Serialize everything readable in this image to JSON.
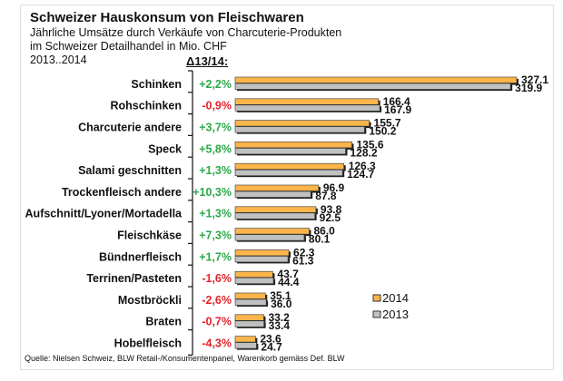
{
  "header": {
    "title": "Schweizer Hauskonsum von Fleischwaren",
    "subtitle_line1": "Jährliche Umsätze durch Verkäufe von Charcuterie-Produkten",
    "subtitle_line2": "im Schweizer Detailhandel in Mio. CHF",
    "period": "2013..2014",
    "delta_header": "Δ13/14:"
  },
  "source": "Quelle: Nielsen Schweiz, BLW Retail-/Konsumentenpanel, Warenkorb gemäss Def. BLW",
  "colors": {
    "series_2014": "#fbb54a",
    "series_2013": "#c0c0c0",
    "positive": "#2ea84a",
    "negative": "#e0242b",
    "bar_outline": "#111111"
  },
  "chart_data": {
    "type": "bar",
    "orientation": "horizontal",
    "title": "Schweizer Hauskonsum von Fleischwaren",
    "subtitle": "Jährliche Umsätze durch Verkäufe von Charcuterie-Produkten im Schweizer Detailhandel in Mio. CHF 2013..2014",
    "xlabel": "",
    "ylabel": "",
    "unit": "Mio. CHF",
    "xlim": [
      0,
      330
    ],
    "grid": false,
    "legend_position": "bottom-right",
    "categories": [
      "Schinken",
      "Rohschinken",
      "Charcuterie andere",
      "Speck",
      "Salami geschnitten",
      "Trockenfleisch andere",
      "Aufschnitt/Lyoner/Mortadella",
      "Fleischkäse",
      "Bündnerfleisch",
      "Terrinen/Pasteten",
      "Mostbröckli",
      "Braten",
      "Hobelfleisch"
    ],
    "series": [
      {
        "name": "2014",
        "values": [
          327.1,
          166.4,
          155.7,
          135.6,
          126.3,
          96.9,
          93.8,
          86.0,
          62.3,
          43.7,
          35.1,
          33.2,
          23.6
        ],
        "labels": [
          "327.1",
          "166.4",
          "155.7",
          "135.6",
          "126.3",
          "96.9",
          "93.8",
          "86.0",
          "62.3",
          "43.7",
          "35.1",
          "33.2",
          "23.6"
        ]
      },
      {
        "name": "2013",
        "values": [
          319.9,
          167.9,
          150.2,
          128.2,
          124.7,
          87.8,
          92.5,
          80.1,
          61.3,
          44.4,
          36.0,
          33.4,
          24.7
        ],
        "labels": [
          "319.9",
          "167.9",
          "150.2",
          "128.2",
          "124.7",
          "87.8",
          "92.5",
          "80.1",
          "61.3",
          "44.4",
          "36.0",
          "33.4",
          "24.7"
        ]
      }
    ],
    "change_header": "Δ13/14:",
    "change_pct": [
      "+2,2%",
      "-0,9%",
      "+3,7%",
      "+5,8%",
      "+1,3%",
      "+10,3%",
      "+1,3%",
      "+7,3%",
      "+1,7%",
      "-1,6%",
      "-2,6%",
      "-0,7%",
      "-4,3%"
    ],
    "legend": [
      "2014",
      "2013"
    ]
  }
}
